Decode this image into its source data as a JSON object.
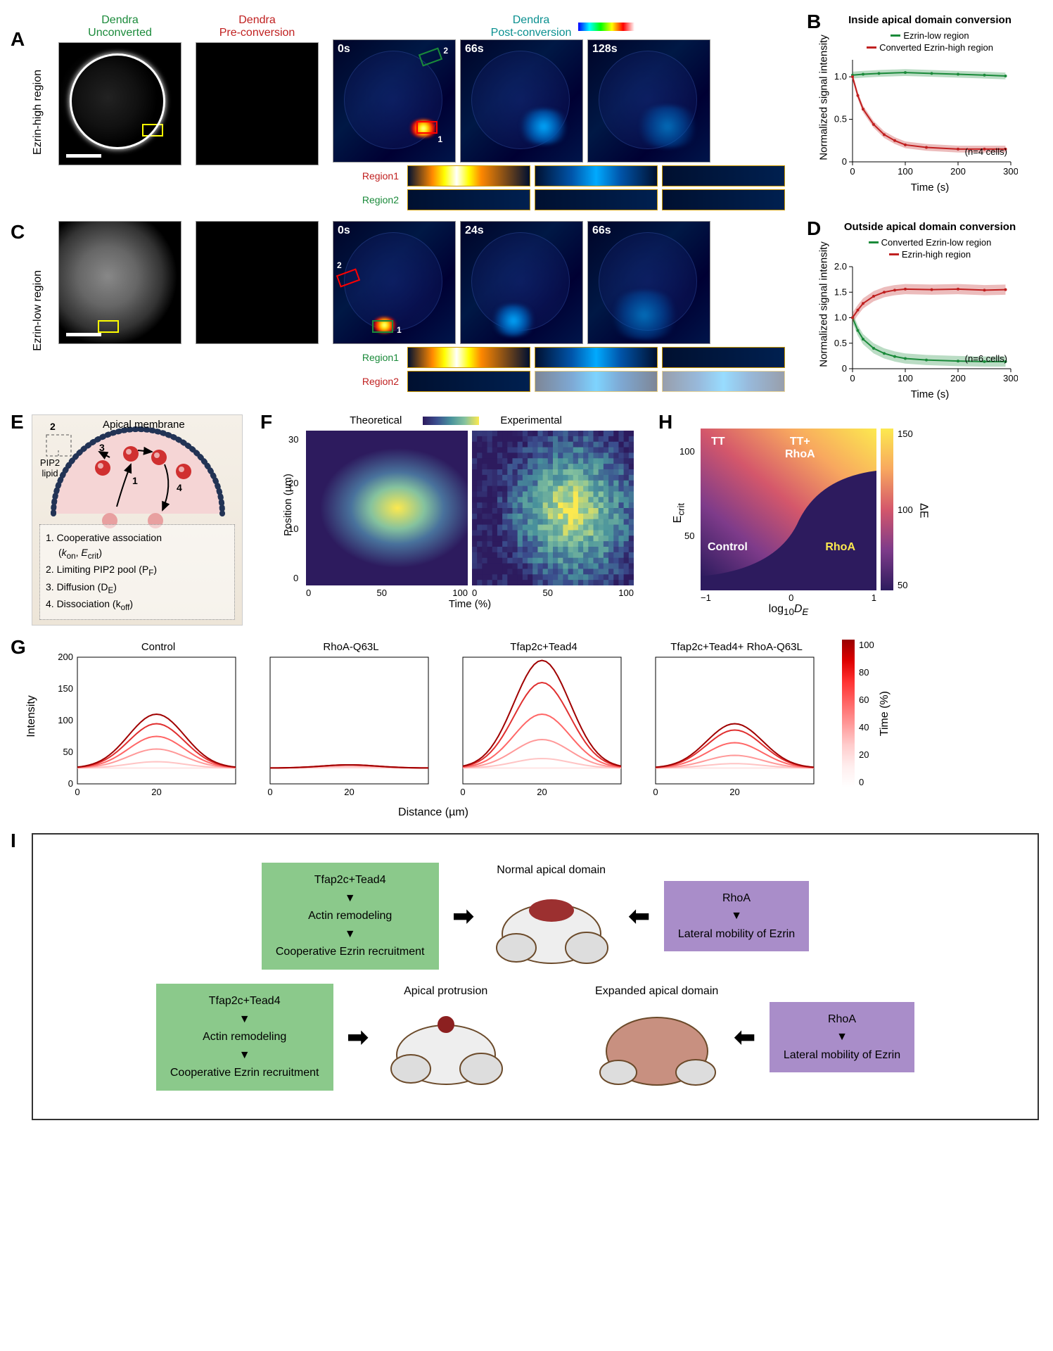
{
  "panels": {
    "A": "A",
    "B": "B",
    "C": "C",
    "D": "D",
    "E": "E",
    "F": "F",
    "G": "G",
    "H": "H",
    "I": "I"
  },
  "headers": {
    "unconverted": "Dendra\nUnconverted",
    "preconversion": "Dendra\nPre-conversion",
    "postconversion": "Dendra\nPost-conversion"
  },
  "colors": {
    "green": "#1a8a3a",
    "red": "#c02020",
    "teal": "#0aa",
    "orange": "#ff8800",
    "viridis_low": "#2d1b5e",
    "viridis_high": "#fce94f"
  },
  "panelA": {
    "row_label": "Ezrin-high region",
    "times": [
      "0s",
      "66s",
      "128s"
    ],
    "region1": {
      "label": "Region1",
      "color": "#c02020"
    },
    "region2": {
      "label": "Region2",
      "color": "#1a8a3a"
    },
    "roi1_num": "1",
    "roi2_num": "2"
  },
  "panelC": {
    "row_label": "Ezrin-low region",
    "times": [
      "0s",
      "24s",
      "66s"
    ],
    "region1": {
      "label": "Region1",
      "color": "#1a8a3a"
    },
    "region2": {
      "label": "Region2",
      "color": "#c02020"
    }
  },
  "panelB": {
    "title": "Inside apical domain conversion",
    "legend": [
      {
        "label": "Ezrin-low region",
        "color": "#1a8a3a"
      },
      {
        "label": "Converted Ezrin-high region",
        "color": "#c02020"
      }
    ],
    "n": "(n=4 cells)",
    "xlabel": "Time (s)",
    "ylabel": "Normalized signal intensity",
    "xlim": [
      0,
      300
    ],
    "ylim": [
      0,
      1.2
    ],
    "xticks": [
      0,
      100,
      200,
      300
    ],
    "yticks": [
      "0",
      "0.5",
      "1.0"
    ],
    "series": {
      "green": [
        [
          0,
          1.02
        ],
        [
          20,
          1.03
        ],
        [
          50,
          1.04
        ],
        [
          100,
          1.05
        ],
        [
          150,
          1.04
        ],
        [
          200,
          1.03
        ],
        [
          250,
          1.02
        ],
        [
          290,
          1.01
        ]
      ],
      "red": [
        [
          0,
          1.0
        ],
        [
          10,
          0.78
        ],
        [
          20,
          0.62
        ],
        [
          40,
          0.44
        ],
        [
          60,
          0.32
        ],
        [
          80,
          0.25
        ],
        [
          100,
          0.2
        ],
        [
          140,
          0.17
        ],
        [
          200,
          0.15
        ],
        [
          250,
          0.15
        ],
        [
          290,
          0.15
        ]
      ]
    },
    "errbar": 0.04
  },
  "panelD": {
    "title": "Outside apical domain conversion",
    "legend": [
      {
        "label": "Converted Ezrin-low region",
        "color": "#1a8a3a"
      },
      {
        "label": "Ezrin-high region",
        "color": "#c02020"
      }
    ],
    "n": "(n=6 cells)",
    "xlabel": "Time (s)",
    "ylabel": "Normalized signal intensity",
    "xlim": [
      0,
      300
    ],
    "ylim": [
      0,
      2.0
    ],
    "xticks": [
      0,
      100,
      200,
      300
    ],
    "yticks": [
      "0",
      "0.5",
      "1.0",
      "1.5",
      "2.0"
    ],
    "series": {
      "red": [
        [
          0,
          1.0
        ],
        [
          10,
          1.15
        ],
        [
          20,
          1.28
        ],
        [
          40,
          1.42
        ],
        [
          60,
          1.5
        ],
        [
          80,
          1.54
        ],
        [
          100,
          1.56
        ],
        [
          150,
          1.55
        ],
        [
          200,
          1.56
        ],
        [
          250,
          1.54
        ],
        [
          290,
          1.55
        ]
      ],
      "green": [
        [
          0,
          1.0
        ],
        [
          10,
          0.75
        ],
        [
          20,
          0.58
        ],
        [
          40,
          0.4
        ],
        [
          60,
          0.3
        ],
        [
          80,
          0.24
        ],
        [
          100,
          0.2
        ],
        [
          140,
          0.17
        ],
        [
          200,
          0.15
        ],
        [
          250,
          0.14
        ],
        [
          290,
          0.14
        ]
      ]
    },
    "errbar": 0.1
  },
  "panelE": {
    "title": "Apical membrane",
    "pip2": "PIP2 lipid",
    "num2": "2",
    "num3": "3",
    "num1": "1",
    "num4": "4",
    "items": [
      "1. Cooperative association\n    (kon, Ecrit)",
      "2. Limiting PIP2 pool (PF)",
      "3. Diffusion (DE)",
      "4. Dissociation (koff)"
    ],
    "item1": "1. Cooperative association",
    "item1b": "(k",
    "item1c": ", E",
    "item1d": ")",
    "sub_on": "on",
    "sub_crit": "crit",
    "item2": "2. Limiting PIP2 pool (P",
    "item2b": ")",
    "sub_F": "F",
    "item3": "3. Diffusion (D",
    "item3b": ")",
    "sub_E": "E",
    "item4": "4. Dissociation (k",
    "item4b": ")",
    "sub_off": "off"
  },
  "panelF": {
    "theo": "Theoretical",
    "exp": "Experimental",
    "ylabel": "Position (µm)",
    "xlabel": "Time (%)",
    "yticks": [
      "0",
      "10",
      "20",
      "30"
    ],
    "xticks": [
      "0",
      "50",
      "100"
    ]
  },
  "panelG": {
    "titles": [
      "Control",
      "RhoA-Q63L",
      "Tfap2c+Tead4",
      "Tfap2c+Tead4+\nRhoA-Q63L"
    ],
    "ylabel": "Intensity",
    "xlabel": "Distance (µm)",
    "ylim": [
      0,
      200
    ],
    "xlim": [
      0,
      40
    ],
    "yticks": [
      0,
      50,
      100,
      150,
      200
    ],
    "xticks": [
      0,
      20
    ],
    "cbar_label": "Time (%)",
    "cbar_ticks": [
      "0",
      "20",
      "40",
      "60",
      "80",
      "100"
    ],
    "curves": {
      "Control": [
        25,
        35,
        55,
        75,
        95,
        110
      ],
      "RhoA-Q63L": [
        25,
        27,
        29,
        30,
        30,
        30
      ],
      "Tfap2c+Tead4": [
        25,
        40,
        70,
        110,
        160,
        195
      ],
      "Tfap2c+Tead4+RhoA-Q63L": [
        25,
        32,
        45,
        65,
        85,
        95
      ]
    },
    "reds": [
      "#ffe5e5",
      "#ffc4c4",
      "#ff9999",
      "#ff6666",
      "#e03030",
      "#a00000"
    ]
  },
  "panelH": {
    "ylabel": "Ecrit",
    "xlabel": "log₁₀DE",
    "cbar": "ΔE",
    "yticks": [
      "50",
      "100"
    ],
    "xticks": [
      "−1",
      "0",
      "1"
    ],
    "cbar_ticks": [
      "50",
      "100",
      "150"
    ],
    "labels": {
      "TT": "TT",
      "TTRhoA": "TT+\nRhoA",
      "Control": "Control",
      "RhoA": "RhoA"
    }
  },
  "panelI": {
    "normal": "Normal apical domain",
    "protrusion": "Apical protrusion",
    "expanded": "Expanded apical domain",
    "green_box": {
      "l1": "Tfap2c+Tead4",
      "l2": "Actin remodeling",
      "l3": "Cooperative Ezrin recruitment"
    },
    "purple_box": {
      "l1": "RhoA",
      "l2": "Lateral mobility of Ezrin"
    },
    "arrow": "▼",
    "arrow_h": "➡",
    "arrow_hl": "⬅"
  }
}
